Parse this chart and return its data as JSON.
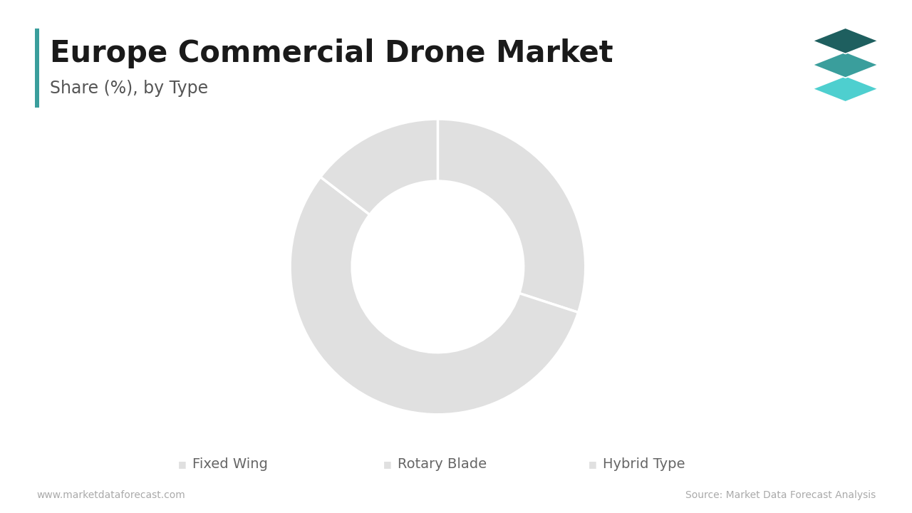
{
  "title": "Europe Commercial Drone Market",
  "subtitle": "Share (%), by Type",
  "segments": [
    "Fixed Wing",
    "Rotary Blade",
    "Hybrid Type"
  ],
  "values": [
    30.0,
    55.4,
    14.6
  ],
  "donut_color": "#e0e0e0",
  "wedge_linewidth": 2.5,
  "wedge_linecolor": "#ffffff",
  "background_color": "#ffffff",
  "title_color": "#1a1a1a",
  "subtitle_color": "#555555",
  "legend_color": "#666666",
  "accent_color": "#3a9e9c",
  "footer_left": "www.marketdataforecast.com",
  "footer_right": "Source: Market Data Forecast Analysis",
  "title_fontsize": 30,
  "subtitle_fontsize": 17,
  "legend_fontsize": 14,
  "footer_fontsize": 10,
  "startangle": 90,
  "logo_colors": [
    "#1e5f5f",
    "#3a9e9c",
    "#4ecfcf"
  ]
}
